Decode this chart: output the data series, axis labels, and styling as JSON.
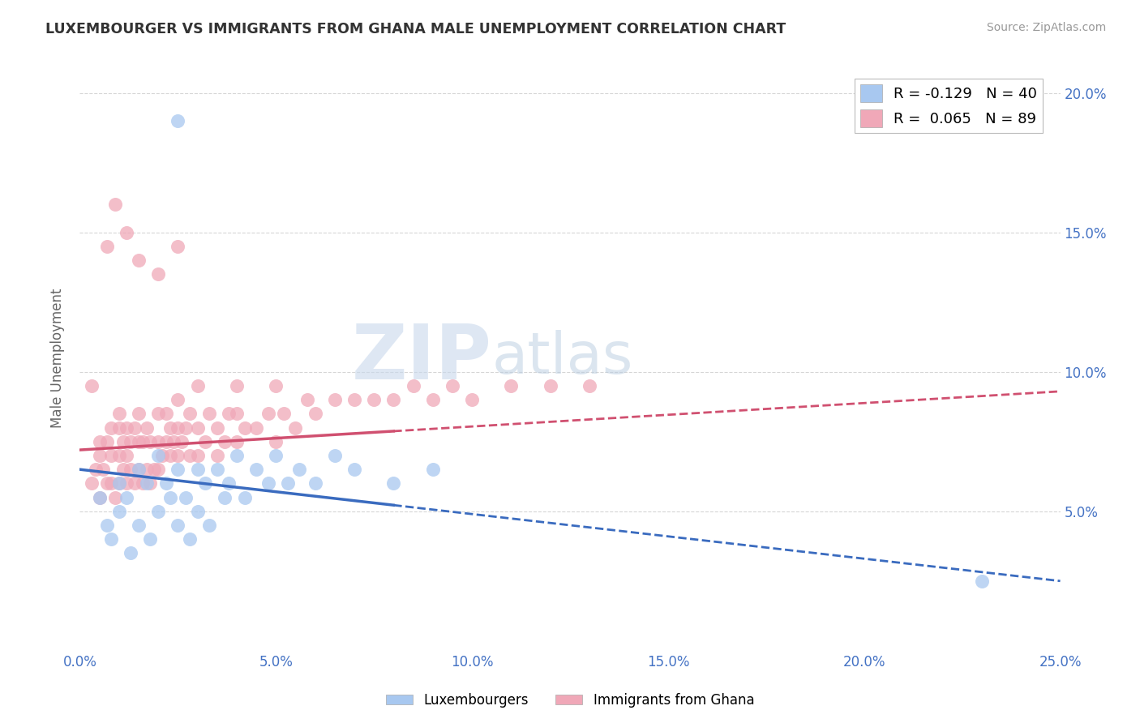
{
  "title": "LUXEMBOURGER VS IMMIGRANTS FROM GHANA MALE UNEMPLOYMENT CORRELATION CHART",
  "source": "Source: ZipAtlas.com",
  "ylabel": "Male Unemployment",
  "xlim": [
    0.0,
    0.25
  ],
  "ylim": [
    0.0,
    0.21
  ],
  "xticks": [
    0.0,
    0.05,
    0.1,
    0.15,
    0.2,
    0.25
  ],
  "yticks": [
    0.05,
    0.1,
    0.15,
    0.2
  ],
  "blue_color": "#a8c8f0",
  "pink_color": "#f0a8b8",
  "blue_line_color": "#3a6bbf",
  "pink_line_color": "#d05070",
  "watermark_zip": "ZIP",
  "watermark_atlas": "atlas",
  "background_color": "#ffffff",
  "grid_color": "#cccccc",
  "luxembourgers_x": [
    0.005,
    0.007,
    0.008,
    0.01,
    0.01,
    0.012,
    0.013,
    0.015,
    0.015,
    0.017,
    0.018,
    0.02,
    0.02,
    0.022,
    0.023,
    0.025,
    0.025,
    0.027,
    0.028,
    0.03,
    0.03,
    0.032,
    0.033,
    0.035,
    0.037,
    0.038,
    0.04,
    0.042,
    0.045,
    0.048,
    0.05,
    0.053,
    0.056,
    0.06,
    0.065,
    0.07,
    0.08,
    0.09,
    0.23,
    0.025
  ],
  "luxembourgers_y": [
    0.055,
    0.045,
    0.04,
    0.06,
    0.05,
    0.055,
    0.035,
    0.065,
    0.045,
    0.06,
    0.04,
    0.07,
    0.05,
    0.06,
    0.055,
    0.065,
    0.045,
    0.055,
    0.04,
    0.065,
    0.05,
    0.06,
    0.045,
    0.065,
    0.055,
    0.06,
    0.07,
    0.055,
    0.065,
    0.06,
    0.07,
    0.06,
    0.065,
    0.06,
    0.07,
    0.065,
    0.06,
    0.065,
    0.025,
    0.19
  ],
  "ghana_x": [
    0.003,
    0.004,
    0.005,
    0.005,
    0.005,
    0.006,
    0.007,
    0.007,
    0.008,
    0.008,
    0.008,
    0.009,
    0.01,
    0.01,
    0.01,
    0.01,
    0.011,
    0.011,
    0.012,
    0.012,
    0.012,
    0.013,
    0.013,
    0.014,
    0.014,
    0.015,
    0.015,
    0.015,
    0.016,
    0.016,
    0.017,
    0.017,
    0.018,
    0.018,
    0.019,
    0.02,
    0.02,
    0.02,
    0.021,
    0.022,
    0.022,
    0.023,
    0.023,
    0.024,
    0.025,
    0.025,
    0.025,
    0.026,
    0.027,
    0.028,
    0.028,
    0.03,
    0.03,
    0.032,
    0.033,
    0.035,
    0.035,
    0.037,
    0.038,
    0.04,
    0.04,
    0.042,
    0.045,
    0.048,
    0.05,
    0.052,
    0.055,
    0.058,
    0.06,
    0.065,
    0.07,
    0.075,
    0.08,
    0.085,
    0.09,
    0.095,
    0.1,
    0.11,
    0.12,
    0.13,
    0.007,
    0.009,
    0.012,
    0.015,
    0.02,
    0.025,
    0.03,
    0.04,
    0.05,
    0.003
  ],
  "ghana_y": [
    0.06,
    0.065,
    0.055,
    0.075,
    0.07,
    0.065,
    0.06,
    0.075,
    0.06,
    0.07,
    0.08,
    0.055,
    0.06,
    0.07,
    0.08,
    0.085,
    0.065,
    0.075,
    0.06,
    0.07,
    0.08,
    0.065,
    0.075,
    0.06,
    0.08,
    0.065,
    0.075,
    0.085,
    0.06,
    0.075,
    0.065,
    0.08,
    0.06,
    0.075,
    0.065,
    0.065,
    0.075,
    0.085,
    0.07,
    0.075,
    0.085,
    0.07,
    0.08,
    0.075,
    0.07,
    0.08,
    0.09,
    0.075,
    0.08,
    0.07,
    0.085,
    0.07,
    0.08,
    0.075,
    0.085,
    0.07,
    0.08,
    0.075,
    0.085,
    0.075,
    0.085,
    0.08,
    0.08,
    0.085,
    0.075,
    0.085,
    0.08,
    0.09,
    0.085,
    0.09,
    0.09,
    0.09,
    0.09,
    0.095,
    0.09,
    0.095,
    0.09,
    0.095,
    0.095,
    0.095,
    0.145,
    0.16,
    0.15,
    0.14,
    0.135,
    0.145,
    0.095,
    0.095,
    0.095,
    0.095
  ]
}
